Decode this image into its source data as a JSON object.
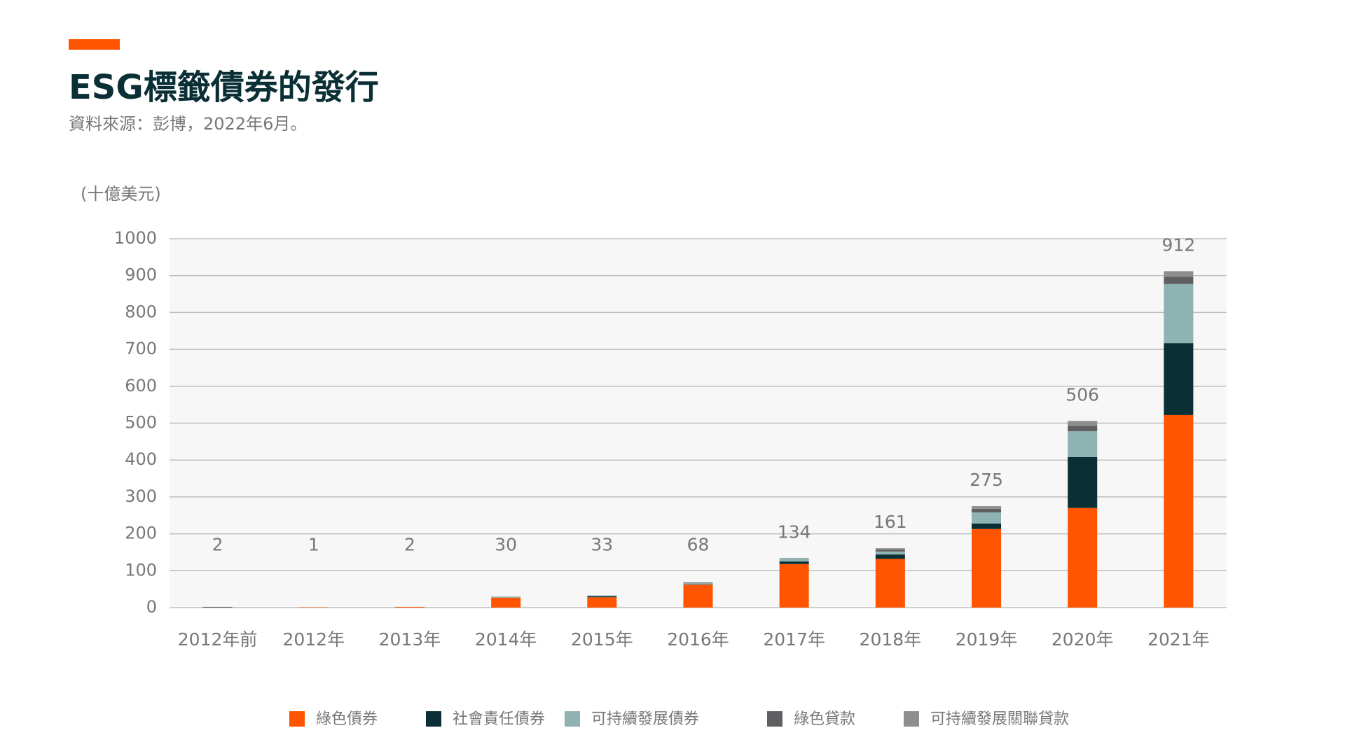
{
  "chart_data": {
    "type": "stacked_bar",
    "title": "ESG標籤債券的發行",
    "subtitle": "資料來源：彭博，2022年6月。",
    "y_label": "(十億美元)",
    "categories": [
      "2012年前",
      "2012年",
      "2013年",
      "2014年",
      "2015年",
      "2016年",
      "2017年",
      "2018年",
      "2019年",
      "2020年",
      "2021年"
    ],
    "series": [
      {
        "name": "綠色債券",
        "color": "#ff5500",
        "values": [
          0,
          1,
          2,
          27,
          28,
          62,
          118,
          132,
          213,
          270,
          522
        ]
      },
      {
        "name": "社會責任債券",
        "color": "#0a2f35",
        "values": [
          0,
          0,
          0,
          0,
          3,
          1,
          7,
          12,
          15,
          138,
          195
        ]
      },
      {
        "name": "可持續發展債券",
        "color": "#8fb3b3",
        "values": [
          0,
          0,
          0,
          3,
          2,
          3,
          8,
          8,
          30,
          70,
          160
        ]
      },
      {
        "name": "綠色貸款",
        "color": "#5f5f62",
        "values": [
          2,
          0,
          0,
          0,
          0,
          2,
          1,
          5,
          10,
          15,
          20
        ]
      },
      {
        "name": "可持續發展關聯貸款",
        "color": "#8e8e8e",
        "values": [
          0,
          0,
          0,
          0,
          0,
          0,
          0,
          4,
          7,
          13,
          15
        ]
      }
    ],
    "totals": [
      2,
      1,
      2,
      30,
      33,
      68,
      134,
      161,
      275,
      506,
      912
    ],
    "ylim": [
      0,
      1000
    ],
    "yticks": [
      0,
      100,
      200,
      300,
      400,
      500,
      600,
      700,
      800,
      900,
      1000
    ],
    "grid": true
  }
}
